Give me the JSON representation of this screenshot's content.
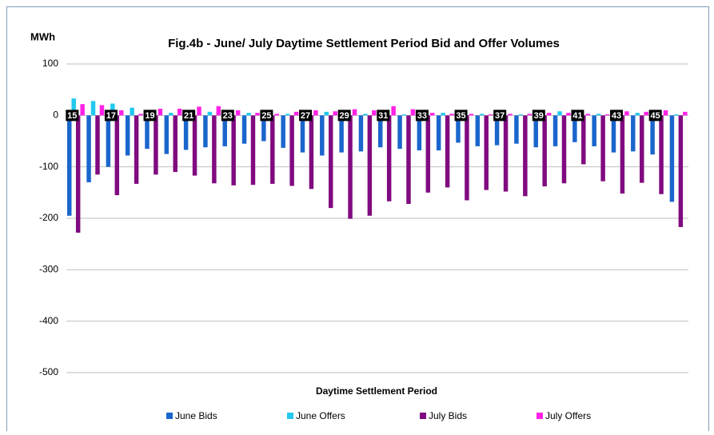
{
  "chart_data": {
    "type": "bar",
    "title": "Fig.4b - June/ July Daytime Settlement Period Bid and Offer Volumes",
    "y_label": "MWh",
    "x_label": "Daytime Settlement Period",
    "categories": [
      "15",
      null,
      "17",
      null,
      "19",
      null,
      "21",
      null,
      "23",
      null,
      "25",
      null,
      "27",
      null,
      "29",
      null,
      "31",
      null,
      "33",
      null,
      "35",
      null,
      "37",
      null,
      "39",
      null,
      "41",
      null,
      "43",
      null,
      "45",
      null
    ],
    "series": [
      {
        "name": "June Bids",
        "color": "#1a66cc",
        "values": [
          -195,
          -130,
          -100,
          -78,
          -65,
          -75,
          -67,
          -62,
          -60,
          -55,
          -50,
          -63,
          -72,
          -78,
          -72,
          -70,
          -62,
          -65,
          -68,
          -68,
          -53,
          -60,
          -58,
          -55,
          -62,
          -60,
          -52,
          -60,
          -72,
          -70,
          -76,
          -168
        ]
      },
      {
        "name": "June Offers",
        "color": "#22c8ee",
        "values": [
          33,
          28,
          23,
          15,
          7,
          5,
          7,
          7,
          7,
          5,
          5,
          3,
          5,
          7,
          5,
          3,
          3,
          2,
          3,
          5,
          5,
          3,
          2,
          2,
          3,
          8,
          5,
          3,
          3,
          5,
          7,
          2
        ]
      },
      {
        "name": "July Bids",
        "color": "#800a80",
        "values": [
          -228,
          -115,
          -155,
          -133,
          -115,
          -110,
          -117,
          -132,
          -136,
          -135,
          -133,
          -137,
          -143,
          -180,
          -201,
          -195,
          -167,
          -172,
          -150,
          -140,
          -165,
          -145,
          -148,
          -157,
          -138,
          -132,
          -95,
          -128,
          -152,
          -131,
          -153,
          -217
        ]
      },
      {
        "name": "July Offers",
        "color": "#ff22e6",
        "values": [
          22,
          20,
          10,
          3,
          13,
          13,
          17,
          18,
          10,
          5,
          3,
          7,
          10,
          8,
          12,
          10,
          18,
          12,
          5,
          3,
          3,
          2,
          3,
          3,
          5,
          5,
          3,
          2,
          8,
          7,
          10,
          7
        ]
      }
    ],
    "ylim": [
      -500,
      100
    ],
    "yticks": [
      -500,
      -400,
      -300,
      -200,
      -100,
      0,
      100
    ],
    "grid": true,
    "legend": "bottom"
  }
}
